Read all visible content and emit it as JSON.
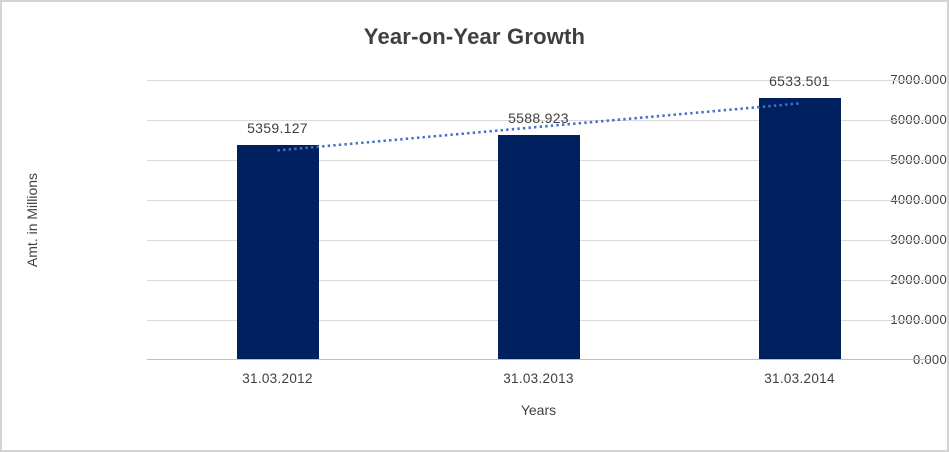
{
  "chart_data": {
    "type": "bar",
    "title": "Year-on-Year Growth",
    "xlabel": "Years",
    "ylabel": "Amt. in Millions",
    "categories": [
      "31.03.2012",
      "31.03.2013",
      "31.03.2014"
    ],
    "values": [
      5359.127,
      5588.923,
      6533.501
    ],
    "value_labels": [
      "5359.127",
      "5588.923",
      "6533.501"
    ],
    "ylim": [
      0,
      7000
    ],
    "ytick_step": 1000,
    "ytick_labels": [
      "0.000",
      "1000.000",
      "2000.000",
      "3000.000",
      "4000.000",
      "5000.000",
      "6000.000",
      "7000.000"
    ],
    "grid": true,
    "legend": false,
    "trendline": {
      "type": "linear",
      "style": "dotted",
      "color": "#4472C4"
    },
    "colors": {
      "bar": "#002060",
      "gridline": "#D9D9D9",
      "axis_line": "#BFBFBF",
      "text": "#404040",
      "border": "#D3D3D3",
      "background": "#FFFFFF"
    }
  }
}
